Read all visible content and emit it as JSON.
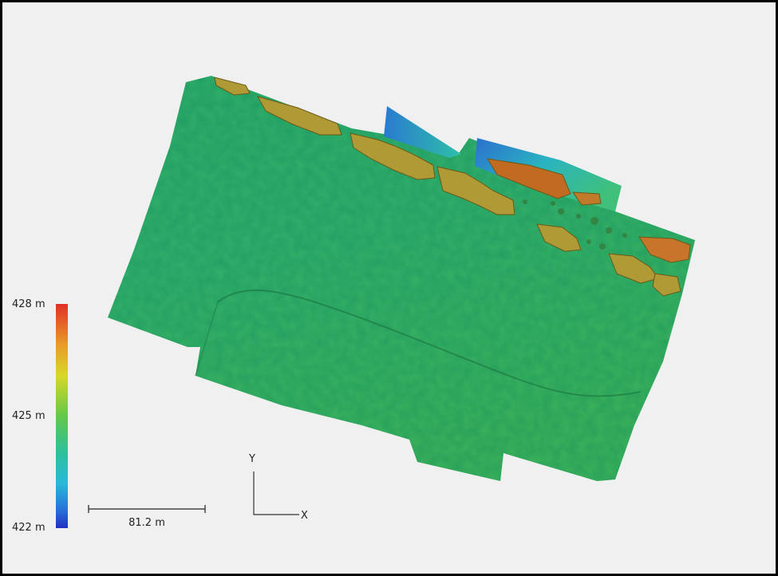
{
  "legend": {
    "max_label": "428 m",
    "mid_label": "425 m",
    "min_label": "422 m",
    "max_value": 428,
    "mid_value": 425,
    "min_value": 422,
    "colors": [
      "#e03024",
      "#e89a2a",
      "#d8d828",
      "#62c84a",
      "#2fc09a",
      "#2ab8d8",
      "#2870d8",
      "#2030c0"
    ]
  },
  "scale_bar": {
    "label": "81.2 m"
  },
  "axes": {
    "y_label": "Y",
    "x_label": "X"
  },
  "map": {
    "surface_color": "#2aac62",
    "rock_color": "#b89a38"
  }
}
